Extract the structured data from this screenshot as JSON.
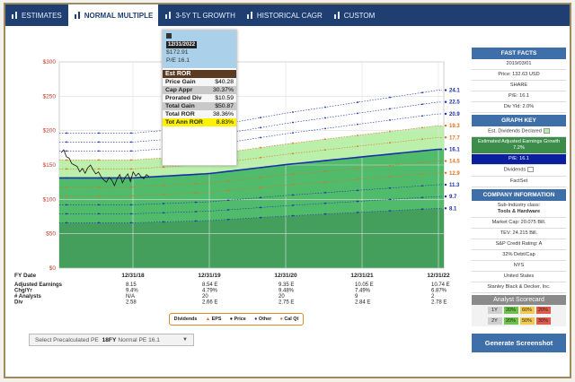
{
  "tabs": [
    {
      "label": "ESTIMATES",
      "icon": "list-icon"
    },
    {
      "label": "NORMAL MULTIPLE",
      "icon": "bar-chart-icon"
    },
    {
      "label": "3-5Y TL GROWTH",
      "icon": "bar-chart-icon"
    },
    {
      "label": "HISTORICAL CAGR",
      "icon": "bar-chart-icon"
    },
    {
      "label": "CUSTOM",
      "icon": "bar-chart-icon"
    }
  ],
  "chart_data": {
    "type": "line",
    "y_ticks": [
      "$300",
      "$250",
      "$200",
      "$150",
      "$100",
      "$50",
      "$0"
    ],
    "ylim": [
      0,
      300
    ],
    "x_dates": [
      "12/31/18",
      "12/31/19",
      "12/31/20",
      "12/31/21",
      "12/31/22"
    ],
    "right_labels": [
      "24.1",
      "22.5",
      "20.9",
      "19.3",
      "17.7",
      "16.1",
      "14.5",
      "12.9",
      "11.3",
      "9.7",
      "8.1"
    ],
    "right_colors": [
      "#1a2fa8",
      "#1a2fa8",
      "#1a2fa8",
      "#e07020",
      "#e07020",
      "#1a2fa8",
      "#e07020",
      "#e07020",
      "#1a2fa8",
      "#1a2fa8",
      "#1a2fa8"
    ],
    "eps": [
      8.15,
      8.54,
      9.35,
      10.05,
      10.74
    ],
    "pe_multiples": [
      8.1,
      9.7,
      11.3,
      12.9,
      14.5,
      16.1,
      17.7,
      19.3,
      20.9,
      22.5,
      24.1
    ],
    "price_history": [
      168,
      172,
      162,
      160,
      152,
      150,
      148,
      140,
      145,
      138,
      146,
      150,
      143,
      137,
      140,
      133,
      128,
      125,
      132,
      128,
      120,
      130,
      136,
      124,
      132,
      137,
      126,
      140,
      134,
      138,
      133,
      130,
      136,
      133
    ],
    "table": {
      "fy_label": "FY Date",
      "row_labels": [
        "Adjusted Earnings",
        "Chg/Yr",
        "# Analysts",
        "Div"
      ],
      "cols": [
        {
          "vals": [
            "8.15",
            "9.4%",
            "N/A",
            "2.58"
          ]
        },
        {
          "vals": [
            "8.54 E",
            "4.79%",
            "20",
            "2.66 E"
          ]
        },
        {
          "vals": [
            "9.35 E",
            "9.48%",
            "20",
            "2.75 E"
          ]
        },
        {
          "vals": [
            "10.05 E",
            "7.49%",
            "9",
            "2.84 E"
          ]
        },
        {
          "vals": [
            "10.74 E",
            "6.87%",
            "2",
            "2.78 E"
          ]
        }
      ]
    }
  },
  "tooltip": {
    "date": "12/31/2022",
    "price": "$172.91",
    "pe": "P/E 16.1",
    "header": "Est ROR",
    "rows": [
      {
        "label": "Price Gain",
        "value": "$40.28",
        "style": "g1"
      },
      {
        "label": "Cap Appr",
        "value": "30.37%",
        "style": "g2"
      },
      {
        "label": "Prorated Div",
        "value": "$10.59",
        "style": "g1"
      },
      {
        "label": "Total Gain",
        "value": "$50.87",
        "style": "g2"
      },
      {
        "label": "Total ROR",
        "value": "38.36%",
        "style": "g1"
      },
      {
        "label": "Tot Ann ROR",
        "value": "8.83%",
        "style": "hl"
      }
    ]
  },
  "legend": [
    {
      "label": "Dividends",
      "marker": "none"
    },
    {
      "label": "EPS",
      "marker": "triangle",
      "color": "#e07020"
    },
    {
      "label": "Price",
      "marker": "dot",
      "color": "#111"
    },
    {
      "label": "Other",
      "marker": "dot",
      "color": "#1a2fa8"
    },
    {
      "label": "Cal Qt",
      "marker": "dot",
      "color": "#e07020"
    }
  ],
  "select": {
    "prefix": "Select Precalculated PE",
    "bold": "18FY",
    "suffix": "Normal PE 16.1"
  },
  "fast_facts": {
    "title": "FAST FACTS",
    "date": "2019/03/01",
    "price": "Price: 132.63 USD",
    "share": "SHARE",
    "pe": "P/E: 16.1",
    "div": "Div Yld: 2.0%"
  },
  "graph_key": {
    "title": "GRAPH KEY",
    "est_div": "Est. Dividends Declared",
    "growth": "Estimated Adjusted Earnings Growth 7.2%",
    "pe": "P/E: 16.1",
    "dividends": "Dividends",
    "factset": "FactSet"
  },
  "company": {
    "title": "COMPANY INFORMATION",
    "sub": "Sub-Industry class:",
    "sub_val": "Tools & Hardware",
    "mcap": "Market Cap: 20.075 Bill.",
    "tev": "TEV: 24.215 Bill.",
    "credit": "S&P Credit Rating: A",
    "debt": "32% Debt/Cap",
    "exch": "NYS",
    "country": "United States",
    "name": "Stanley Black & Decker, Inc."
  },
  "scorecard": {
    "title": "Analyst Scorecard",
    "rows": [
      {
        "cells": [
          {
            "t": "1Y",
            "c": "#cfcfcf"
          },
          {
            "t": "20%",
            "c": "#6cc24a"
          },
          {
            "t": "60%",
            "c": "#f2c94c"
          },
          {
            "t": "20%",
            "c": "#e05a4a"
          }
        ]
      },
      {
        "cells": [
          {
            "t": "2Y",
            "c": "#cfcfcf"
          },
          {
            "t": "20%",
            "c": "#6cc24a"
          },
          {
            "t": "50%",
            "c": "#f2c94c"
          },
          {
            "t": "30%",
            "c": "#e05a4a"
          }
        ]
      }
    ]
  },
  "generate_label": "Generate Screenshot"
}
